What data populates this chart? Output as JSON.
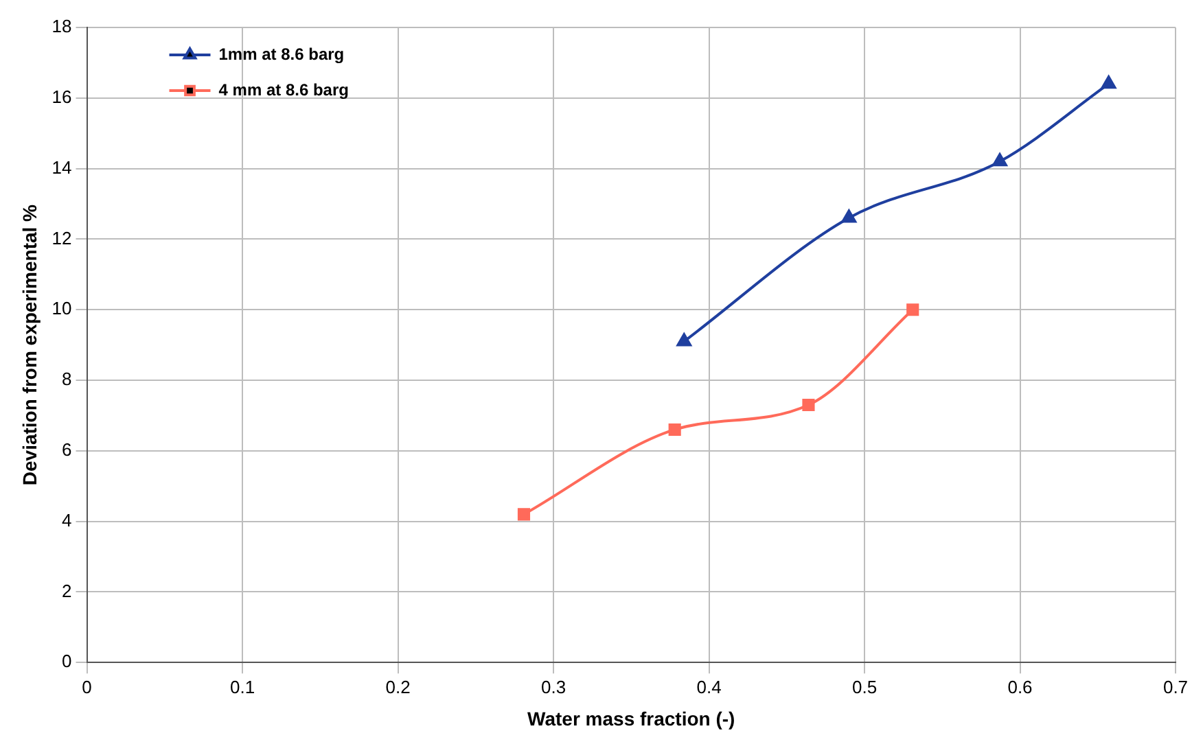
{
  "chart_data": {
    "type": "line",
    "xlabel": "Water mass fraction (-)",
    "ylabel": "Deviation from experimental %",
    "xlim": [
      0,
      0.7
    ],
    "xticks": [
      0,
      0.1,
      0.2,
      0.3,
      0.4,
      0.5,
      0.6,
      0.7
    ],
    "ylim": [
      0,
      18
    ],
    "yticks": [
      0,
      2,
      4,
      6,
      8,
      10,
      12,
      14,
      16,
      18
    ],
    "grid": true,
    "legend": "top left",
    "line_style": "solid",
    "series": [
      {
        "name": "1mm at 8.6 barg",
        "color": "#1f3f9f",
        "marker": "triangle",
        "x": [
          0.384,
          0.49,
          0.587,
          0.657
        ],
        "values": [
          9.1,
          12.6,
          14.2,
          16.4
        ]
      },
      {
        "name": "4 mm at 8.6 barg",
        "color": "#ff6a5a",
        "marker": "square",
        "x": [
          0.281,
          0.378,
          0.464,
          0.531
        ],
        "values": [
          4.2,
          6.6,
          7.3,
          10.0
        ]
      }
    ]
  }
}
